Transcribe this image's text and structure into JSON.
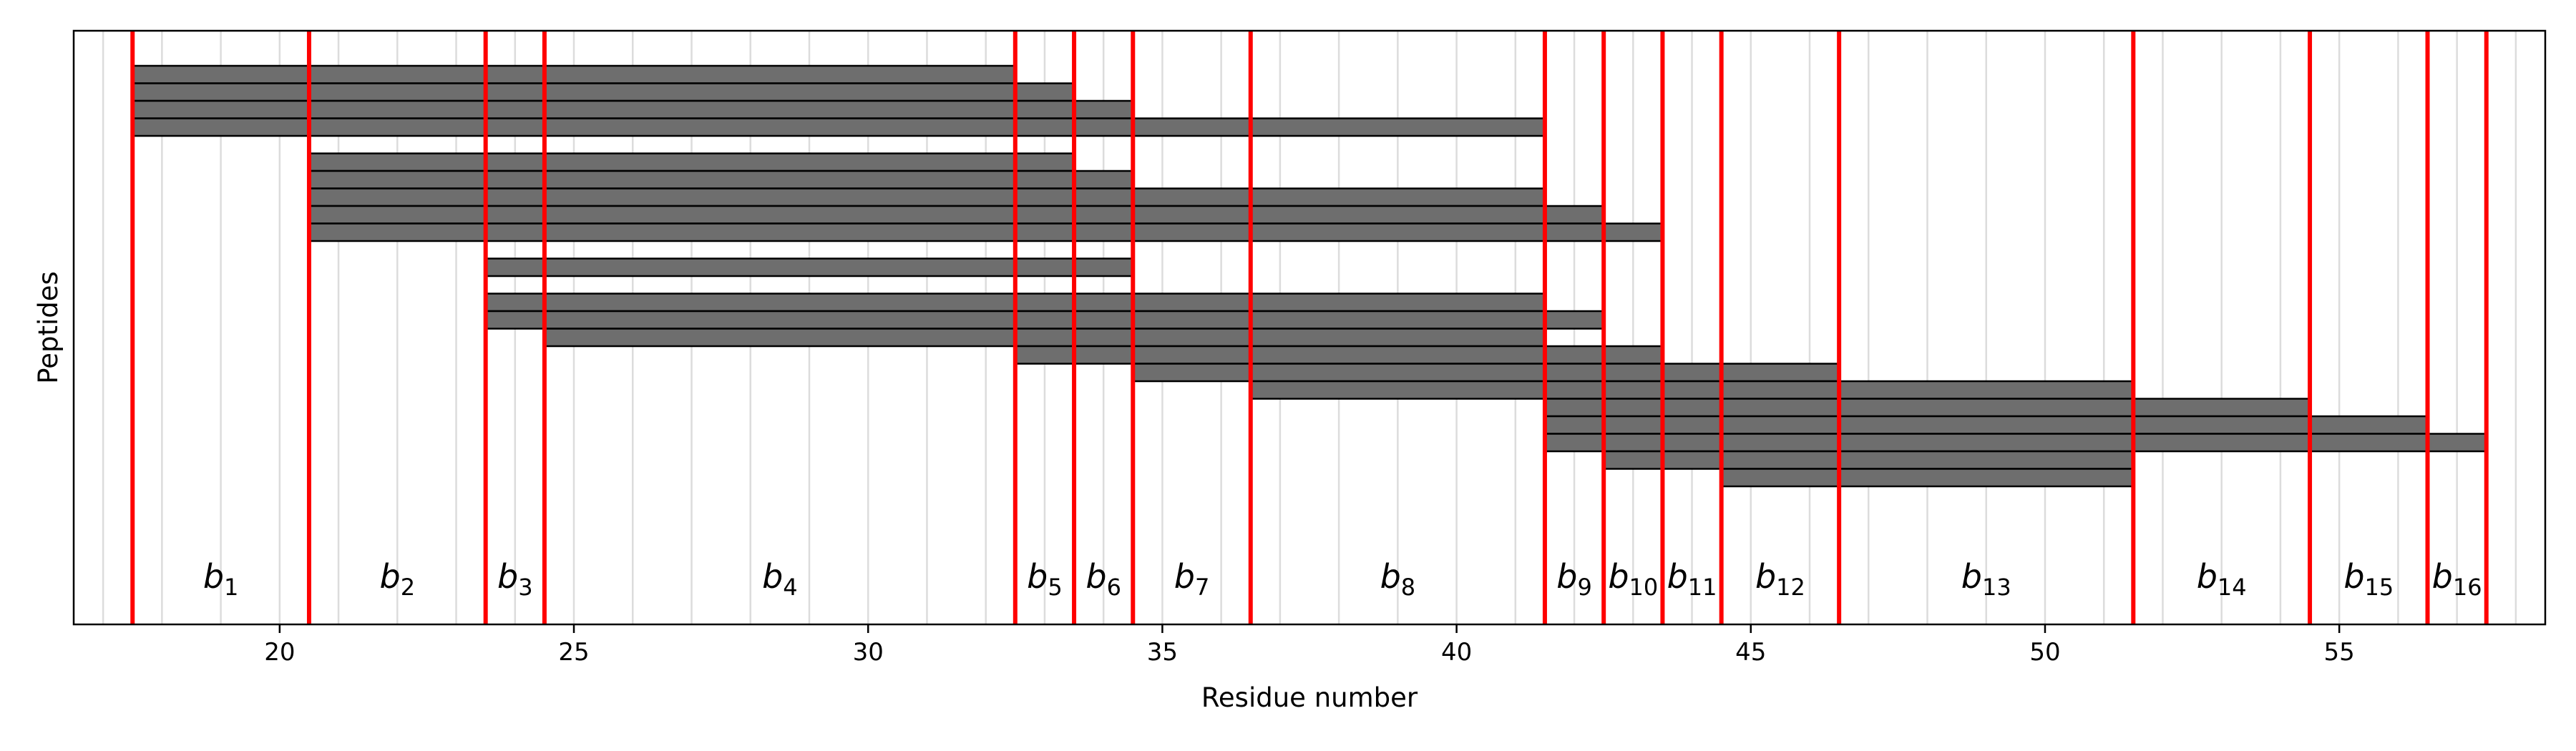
{
  "chart_data": {
    "type": "bar",
    "xlabel": "Residue number",
    "ylabel": "Peptides",
    "xlim": [
      16.5,
      58.5
    ],
    "xticks": [
      "20",
      "25",
      "30",
      "35",
      "40",
      "45",
      "50",
      "55"
    ],
    "xtick_values": [
      20,
      25,
      30,
      35,
      40,
      45,
      50,
      55
    ],
    "grid": "vertical lines at every residue",
    "bar_color": "#6e6e6e",
    "boundary_color": "#ff0000",
    "boundaries": [
      17.5,
      20.5,
      23.5,
      24.5,
      32.5,
      33.5,
      34.5,
      36.5,
      41.5,
      42.5,
      43.5,
      44.5,
      46.5,
      51.5,
      54.5,
      56.5,
      57.5
    ],
    "blocks": [
      {
        "label": "b",
        "sub": "1",
        "x": 19
      },
      {
        "label": "b",
        "sub": "2",
        "x": 22
      },
      {
        "label": "b",
        "sub": "3",
        "x": 24
      },
      {
        "label": "b",
        "sub": "4",
        "x": 28.5
      },
      {
        "label": "b",
        "sub": "5",
        "x": 33
      },
      {
        "label": "b",
        "sub": "6",
        "x": 34
      },
      {
        "label": "b",
        "sub": "7",
        "x": 35.5
      },
      {
        "label": "b",
        "sub": "8",
        "x": 39
      },
      {
        "label": "b",
        "sub": "9",
        "x": 42
      },
      {
        "label": "b",
        "sub": "10",
        "x": 43
      },
      {
        "label": "b",
        "sub": "11",
        "x": 44
      },
      {
        "label": "b",
        "sub": "12",
        "x": 45.5
      },
      {
        "label": "b",
        "sub": "13",
        "x": 49
      },
      {
        "label": "b",
        "sub": "14",
        "x": 53
      },
      {
        "label": "b",
        "sub": "15",
        "x": 55.5
      },
      {
        "label": "b",
        "sub": "16",
        "x": 57
      }
    ],
    "peptides": [
      {
        "start": 18,
        "end": 32
      },
      {
        "start": 18,
        "end": 33
      },
      {
        "start": 18,
        "end": 34
      },
      {
        "start": 18,
        "end": 41
      },
      {
        "start": 21,
        "end": 33
      },
      {
        "start": 21,
        "end": 34
      },
      {
        "start": 21,
        "end": 41
      },
      {
        "start": 21,
        "end": 42
      },
      {
        "start": 21,
        "end": 43
      },
      {
        "start": 24,
        "end": 34
      },
      {
        "start": 24,
        "end": 41
      },
      {
        "start": 24,
        "end": 42
      },
      {
        "start": 25,
        "end": 41
      },
      {
        "start": 33,
        "end": 43
      },
      {
        "start": 35,
        "end": 46
      },
      {
        "start": 37,
        "end": 51
      },
      {
        "start": 42,
        "end": 54
      },
      {
        "start": 42,
        "end": 56
      },
      {
        "start": 42,
        "end": 57
      },
      {
        "start": 43,
        "end": 51
      },
      {
        "start": 45,
        "end": 51
      }
    ],
    "peptide_rows": [
      0,
      1,
      2,
      3,
      5,
      6,
      7,
      8,
      9,
      11,
      13,
      14,
      15,
      16,
      17,
      18,
      19,
      20,
      21,
      22,
      23
    ]
  }
}
